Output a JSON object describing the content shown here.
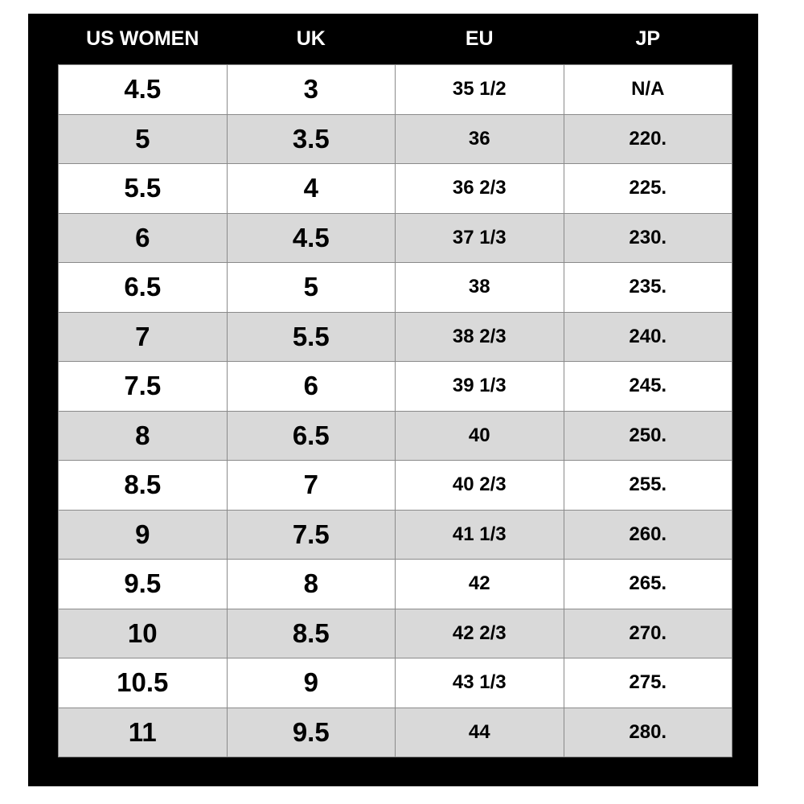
{
  "table": {
    "header": [
      "US WOMEN",
      "UK",
      "EU",
      "JP"
    ],
    "rows": [
      [
        "4.5",
        "3",
        "35 1/2",
        "N/A"
      ],
      [
        "5",
        "3.5",
        "36",
        "220."
      ],
      [
        "5.5",
        "4",
        "36 2/3",
        "225."
      ],
      [
        "6",
        "4.5",
        "37 1/3",
        "230."
      ],
      [
        "6.5",
        "5",
        "38",
        "235."
      ],
      [
        "7",
        "5.5",
        "38 2/3",
        "240."
      ],
      [
        "7.5",
        "6",
        "39 1/3",
        "245."
      ],
      [
        "8",
        "6.5",
        "40",
        "250."
      ],
      [
        "8.5",
        "7",
        "40 2/3",
        "255."
      ],
      [
        "9",
        "7.5",
        "41 1/3",
        "260."
      ],
      [
        "9.5",
        "8",
        "42",
        "265."
      ],
      [
        "10",
        "8.5",
        "42 2/3",
        "270."
      ],
      [
        "10.5",
        "9",
        "43 1/3",
        "275."
      ],
      [
        "11",
        "9.5",
        "44",
        "280."
      ]
    ]
  }
}
